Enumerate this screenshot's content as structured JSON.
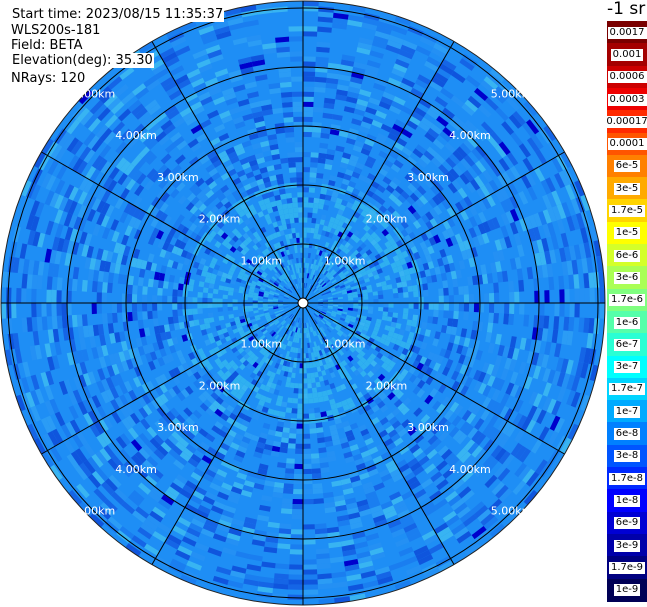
{
  "header": {
    "start_time": "Start time: 2023/08/15 11:35:37",
    "instrument": "WLS200s-181",
    "field": "Field: BETA",
    "elevation": "Elevation(deg): 35.30",
    "nrays": "NRays: 120"
  },
  "plot": {
    "range_rings": [
      "1.00km",
      "2.00km",
      "3.00km",
      "4.00km",
      "5.00km"
    ],
    "spoke_count": 12,
    "background_color": "#1e8ef5",
    "center_fill_color": "#2fb0f0"
  },
  "colorbar": {
    "unit": "-1 sr",
    "levels": [
      {
        "label": "0.0017",
        "color": "#7a0000"
      },
      {
        "label": "0.001",
        "color": "#a40000"
      },
      {
        "label": "0.0006",
        "color": "#cc0000"
      },
      {
        "label": "0.0003",
        "color": "#ee0000"
      },
      {
        "label": "0.00017",
        "color": "#ff2a00"
      },
      {
        "label": "0.0001",
        "color": "#ff5500"
      },
      {
        "label": "6e-5",
        "color": "#ff8000"
      },
      {
        "label": "3e-5",
        "color": "#ffaa00"
      },
      {
        "label": "1.7e-5",
        "color": "#ffd400"
      },
      {
        "label": "1e-5",
        "color": "#ffff00"
      },
      {
        "label": "6e-6",
        "color": "#d4ff2a"
      },
      {
        "label": "3e-6",
        "color": "#aaff55"
      },
      {
        "label": "1.7e-6",
        "color": "#80ff80"
      },
      {
        "label": "1e-6",
        "color": "#55ffaa"
      },
      {
        "label": "6e-7",
        "color": "#2affd4"
      },
      {
        "label": "3e-7",
        "color": "#00ffff"
      },
      {
        "label": "1.7e-7",
        "color": "#00d4ff"
      },
      {
        "label": "1e-7",
        "color": "#00aaff"
      },
      {
        "label": "6e-8",
        "color": "#0080ff"
      },
      {
        "label": "3e-8",
        "color": "#0055ff"
      },
      {
        "label": "1.7e-8",
        "color": "#002aff"
      },
      {
        "label": "1e-8",
        "color": "#0000ff"
      },
      {
        "label": "6e-9",
        "color": "#0000d4"
      },
      {
        "label": "3e-9",
        "color": "#0000aa"
      },
      {
        "label": "1.7e-9",
        "color": "#000080"
      },
      {
        "label": "1e-9",
        "color": "#000055"
      }
    ]
  }
}
